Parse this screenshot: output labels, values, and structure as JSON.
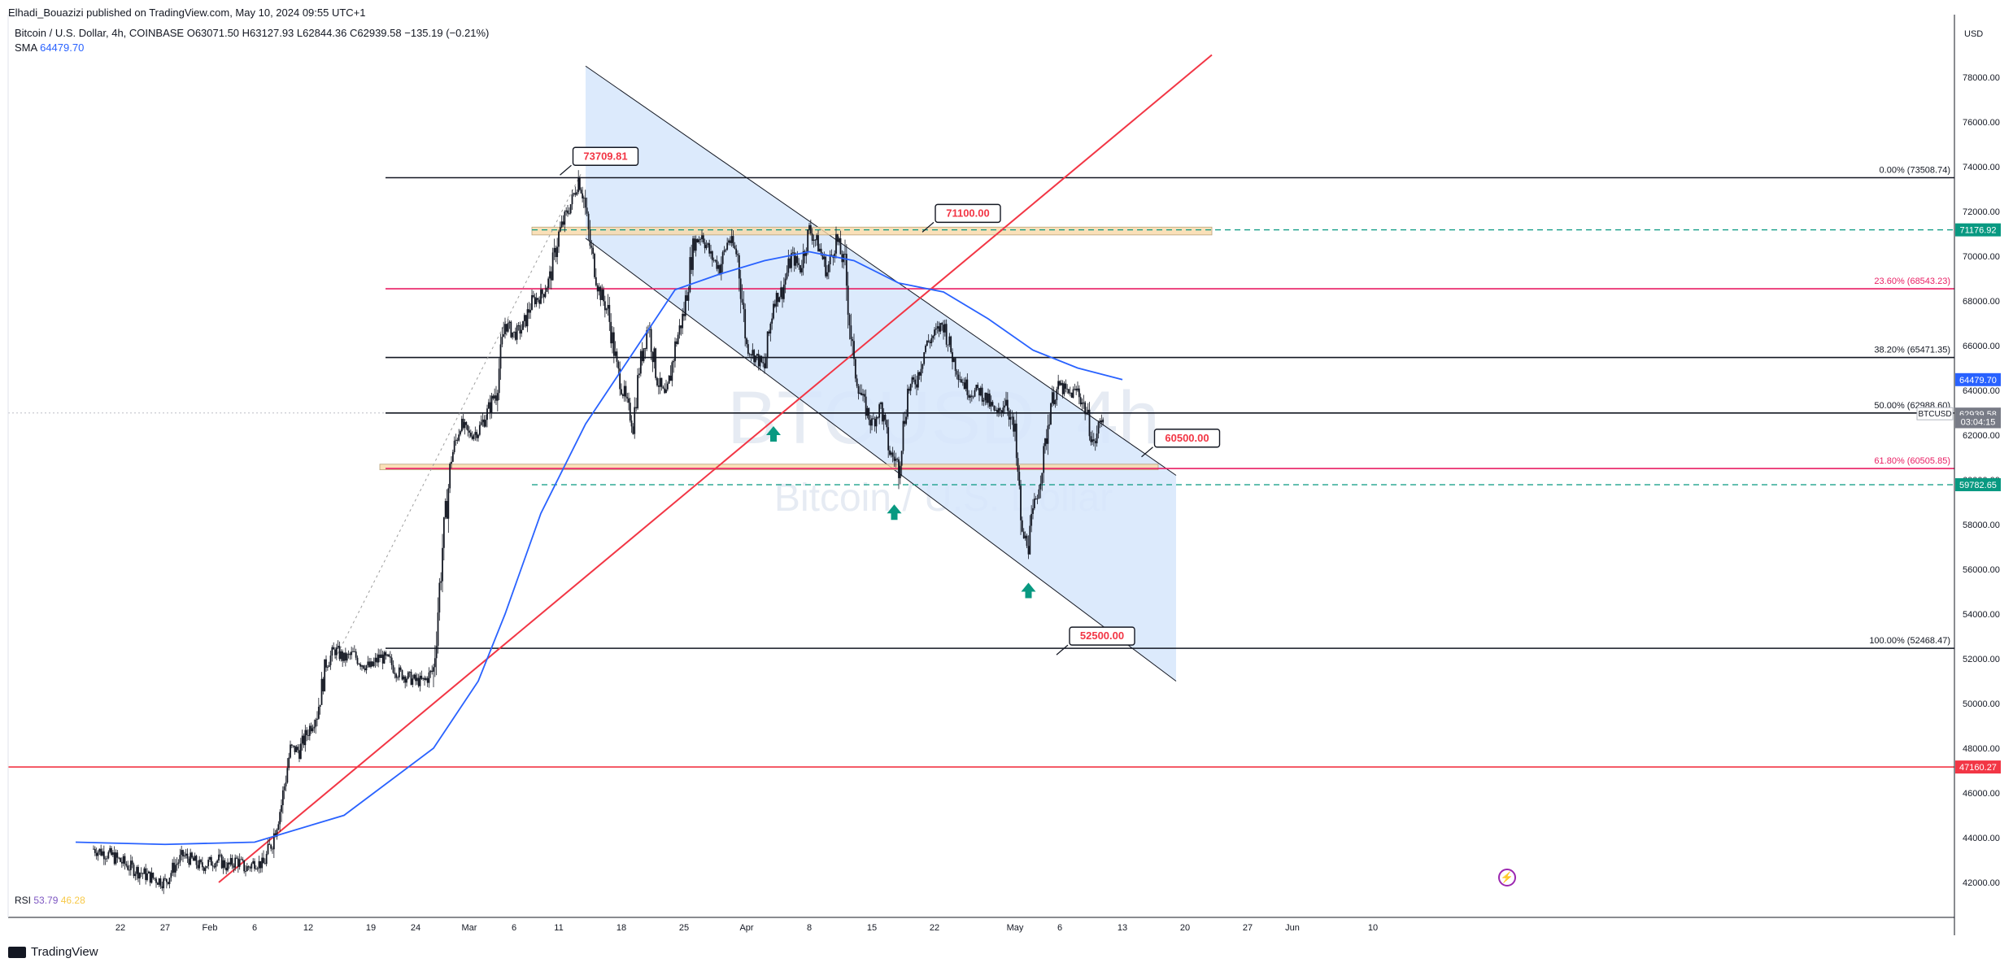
{
  "header": {
    "publisher": "Elhadi_Bouazizi published on TradingView.com, May 10, 2024 09:55 UTC+1",
    "symbol_title": "Bitcoin / U.S. Dollar, 4h, COINBASE",
    "ohlc": {
      "o": "O63071.50",
      "h": "H63127.93",
      "l": "L62844.36",
      "c": "C62939.58",
      "chg": "−135.19 (−0.21%)"
    },
    "sma_label": "SMA",
    "sma_value": "64479.70"
  },
  "watermark": {
    "symbol": "BTCUSD, 4h",
    "name": "Bitcoin / U.S. Dollar"
  },
  "footer": {
    "brand": "TradingView"
  },
  "price_axis": {
    "currency": "USD"
  },
  "rsi": {
    "label": "RSI",
    "value1": "53.79",
    "value2": "46.28"
  },
  "colors": {
    "fib_black": "#131722",
    "fib_magenta": "#e91e63",
    "trend_red": "#f23645",
    "sma_blue": "#2962ff",
    "channel_fill": "#d6e6fb",
    "zone_orange": "#f9d8a6",
    "green_label": "#089981",
    "red_label": "#f23645"
  },
  "chart_data": {
    "type": "candlestick",
    "timeframe": "4h",
    "y_ticks": [
      42000,
      44000,
      46000,
      48000,
      50000,
      52000,
      54000,
      56000,
      58000,
      60000,
      62000,
      64000,
      66000,
      68000,
      70000,
      72000,
      74000,
      76000,
      78000
    ],
    "y_tick_labels": [
      "42000.00",
      "44000.00",
      "46000.00",
      "48000.00",
      "50000.00",
      "52000.00",
      "54000.00",
      "56000.00",
      "58000.00",
      "60000.00",
      "62000.00",
      "64000.00",
      "66000.00",
      "68000.00",
      "70000.00",
      "72000.00",
      "74000.00",
      "76000.00",
      "78000.00"
    ],
    "x_ticks": [
      {
        "label": "22",
        "day": -10
      },
      {
        "label": "27",
        "day": -5
      },
      {
        "label": "Feb",
        "day": 0
      },
      {
        "label": "6",
        "day": 5
      },
      {
        "label": "12",
        "day": 11
      },
      {
        "label": "19",
        "day": 18
      },
      {
        "label": "24",
        "day": 23
      },
      {
        "label": "Mar",
        "day": 29
      },
      {
        "label": "6",
        "day": 34
      },
      {
        "label": "11",
        "day": 39
      },
      {
        "label": "18",
        "day": 46
      },
      {
        "label": "25",
        "day": 53
      },
      {
        "label": "Apr",
        "day": 60
      },
      {
        "label": "8",
        "day": 67
      },
      {
        "label": "15",
        "day": 74
      },
      {
        "label": "22",
        "day": 81
      },
      {
        "label": "May",
        "day": 90
      },
      {
        "label": "6",
        "day": 95
      },
      {
        "label": "13",
        "day": 102
      },
      {
        "label": "20",
        "day": 109
      },
      {
        "label": "27",
        "day": 116
      },
      {
        "label": "Jun",
        "day": 121
      },
      {
        "label": "10",
        "day": 130
      }
    ],
    "fib_levels": [
      {
        "label": "0.00% (73508.74)",
        "price": 73508.74,
        "color": "black"
      },
      {
        "label": "23.60% (68543.23)",
        "price": 68543.23,
        "color": "magenta"
      },
      {
        "label": "38.20% (65471.35)",
        "price": 65471.35,
        "color": "black"
      },
      {
        "label": "50.00% (62988.60)",
        "price": 62988.6,
        "color": "black"
      },
      {
        "label": "61.80% (60505.85)",
        "price": 60505.85,
        "color": "magenta"
      },
      {
        "label": "100.00% (52468.47)",
        "price": 52468.47,
        "color": "black"
      }
    ],
    "axis_markers": [
      {
        "label": "71176.92",
        "price": 71176.92,
        "color": "green"
      },
      {
        "label": "64479.70",
        "price": 64479.7,
        "color": "blue"
      },
      {
        "label": "62939.58",
        "price": 62939.58,
        "color": "gray"
      },
      {
        "label": "03:04:15",
        "price": 62600,
        "color": "gray"
      },
      {
        "label": "59782.65",
        "price": 59782.65,
        "color": "green"
      },
      {
        "label": "47160.27",
        "price": 47160.27,
        "color": "red"
      }
    ],
    "axis_symbol_tag": "BTCUSD",
    "callouts": [
      {
        "label": "73709.81",
        "day": 41.5,
        "price": 74500
      },
      {
        "label": "71100.00",
        "day": 82,
        "price": 71950
      },
      {
        "label": "60500.00",
        "day": 106.5,
        "price": 61900
      },
      {
        "label": "52500.00",
        "day": 97,
        "price": 53050
      }
    ],
    "horizontal_support": {
      "price": 47160.27
    },
    "candles_close": [
      [
        -13,
        43500
      ],
      [
        -11,
        43200
      ],
      [
        -9,
        42700
      ],
      [
        -7,
        42300
      ],
      [
        -5,
        42000
      ],
      [
        -4,
        42700
      ],
      [
        -3,
        43200
      ],
      [
        -2,
        43000
      ],
      [
        -1,
        42700
      ],
      [
        0,
        42900
      ],
      [
        1,
        43000
      ],
      [
        2,
        42700
      ],
      [
        3,
        43000
      ],
      [
        4,
        42600
      ],
      [
        5,
        42900
      ],
      [
        6,
        42800
      ],
      [
        7,
        43900
      ],
      [
        8,
        45500
      ],
      [
        9,
        48000
      ],
      [
        10,
        47900
      ],
      [
        11,
        48800
      ],
      [
        12,
        49600
      ],
      [
        13,
        51800
      ],
      [
        14,
        52400
      ],
      [
        15,
        52000
      ],
      [
        16,
        52200
      ],
      [
        17,
        51800
      ],
      [
        18,
        51600
      ],
      [
        19,
        52100
      ],
      [
        20,
        51900
      ],
      [
        21,
        51400
      ],
      [
        22,
        51200
      ],
      [
        23,
        51000
      ],
      [
        24,
        51000
      ],
      [
        25,
        51500
      ],
      [
        26,
        57000
      ],
      [
        27,
        61000
      ],
      [
        28,
        62500
      ],
      [
        29,
        62000
      ],
      [
        30,
        62200
      ],
      [
        31,
        63000
      ],
      [
        32,
        64000
      ],
      [
        33,
        67000
      ],
      [
        34,
        66500
      ],
      [
        35,
        66800
      ],
      [
        36,
        68000
      ],
      [
        37,
        68200
      ],
      [
        38,
        69000
      ],
      [
        39,
        71000
      ],
      [
        40,
        72000
      ],
      [
        40.5,
        72500
      ],
      [
        41.2,
        73500
      ],
      [
        41.8,
        72600
      ],
      [
        42.5,
        70500
      ],
      [
        43.5,
        68500
      ],
      [
        44.5,
        67500
      ],
      [
        45.5,
        65000
      ],
      [
        46.5,
        63500
      ],
      [
        47.3,
        62500
      ],
      [
        48,
        65000
      ],
      [
        49,
        67000
      ],
      [
        50,
        64500
      ],
      [
        51,
        63500
      ],
      [
        52,
        66000
      ],
      [
        53,
        67500
      ],
      [
        54,
        70500
      ],
      [
        55,
        71000
      ],
      [
        56,
        70000
      ],
      [
        57,
        69500
      ],
      [
        58,
        70800
      ],
      [
        59,
        70000
      ],
      [
        60,
        66000
      ],
      [
        61,
        65500
      ],
      [
        62,
        65000
      ],
      [
        63,
        68000
      ],
      [
        64,
        68500
      ],
      [
        65,
        70000
      ],
      [
        66,
        69500
      ],
      [
        67,
        71200
      ],
      [
        68,
        70500
      ],
      [
        69,
        69300
      ],
      [
        70,
        70800
      ],
      [
        71,
        69500
      ],
      [
        72,
        65000
      ],
      [
        73,
        63500
      ],
      [
        74,
        62500
      ],
      [
        75,
        63300
      ],
      [
        76,
        61200
      ],
      [
        77,
        60700
      ],
      [
        78,
        64000
      ],
      [
        79,
        64500
      ],
      [
        80,
        66000
      ],
      [
        81,
        66500
      ],
      [
        82,
        67000
      ],
      [
        83,
        65500
      ],
      [
        84,
        64500
      ],
      [
        85,
        63900
      ],
      [
        86,
        64000
      ],
      [
        87,
        63500
      ],
      [
        88,
        62800
      ],
      [
        89,
        63700
      ],
      [
        90,
        61800
      ],
      [
        90.8,
        57500
      ],
      [
        91.5,
        57200
      ],
      [
        92.5,
        59500
      ],
      [
        93.2,
        61000
      ],
      [
        94,
        63500
      ],
      [
        95,
        64200
      ],
      [
        96,
        63800
      ],
      [
        97,
        64000
      ],
      [
        98,
        63000
      ],
      [
        98.8,
        61500
      ],
      [
        99.5,
        62600
      ],
      [
        100,
        62940
      ]
    ],
    "sma_points": [
      [
        -15,
        43800
      ],
      [
        -5,
        43700
      ],
      [
        5,
        43800
      ],
      [
        15,
        45000
      ],
      [
        25,
        48000
      ],
      [
        30,
        51000
      ],
      [
        33,
        54000
      ],
      [
        37,
        58500
      ],
      [
        42,
        62500
      ],
      [
        47,
        65500
      ],
      [
        52,
        68500
      ],
      [
        57,
        69200
      ],
      [
        62,
        69800
      ],
      [
        67,
        70200
      ],
      [
        72,
        69800
      ],
      [
        77,
        68800
      ],
      [
        82,
        68400
      ],
      [
        87,
        67200
      ],
      [
        92,
        65800
      ],
      [
        97,
        65000
      ],
      [
        102,
        64480
      ]
    ],
    "channel": {
      "upper": [
        [
          42,
          78500
        ],
        [
          108,
          60200
        ]
      ],
      "lower": [
        [
          42,
          70800
        ],
        [
          108,
          51000
        ]
      ]
    },
    "trendline": {
      "p1": [
        1,
        42000
      ],
      "p2": [
        112,
        79000
      ]
    },
    "zones": [
      {
        "d0": 36,
        "d1": 112,
        "p0": 71300,
        "p1": 70950
      },
      {
        "d0": 19,
        "d1": 106,
        "p0": 60700,
        "p1": 60450
      }
    ],
    "arrows": [
      {
        "day": 63,
        "price": 62000
      },
      {
        "day": 76.5,
        "price": 58500
      },
      {
        "day": 91.5,
        "price": 55000
      }
    ]
  }
}
